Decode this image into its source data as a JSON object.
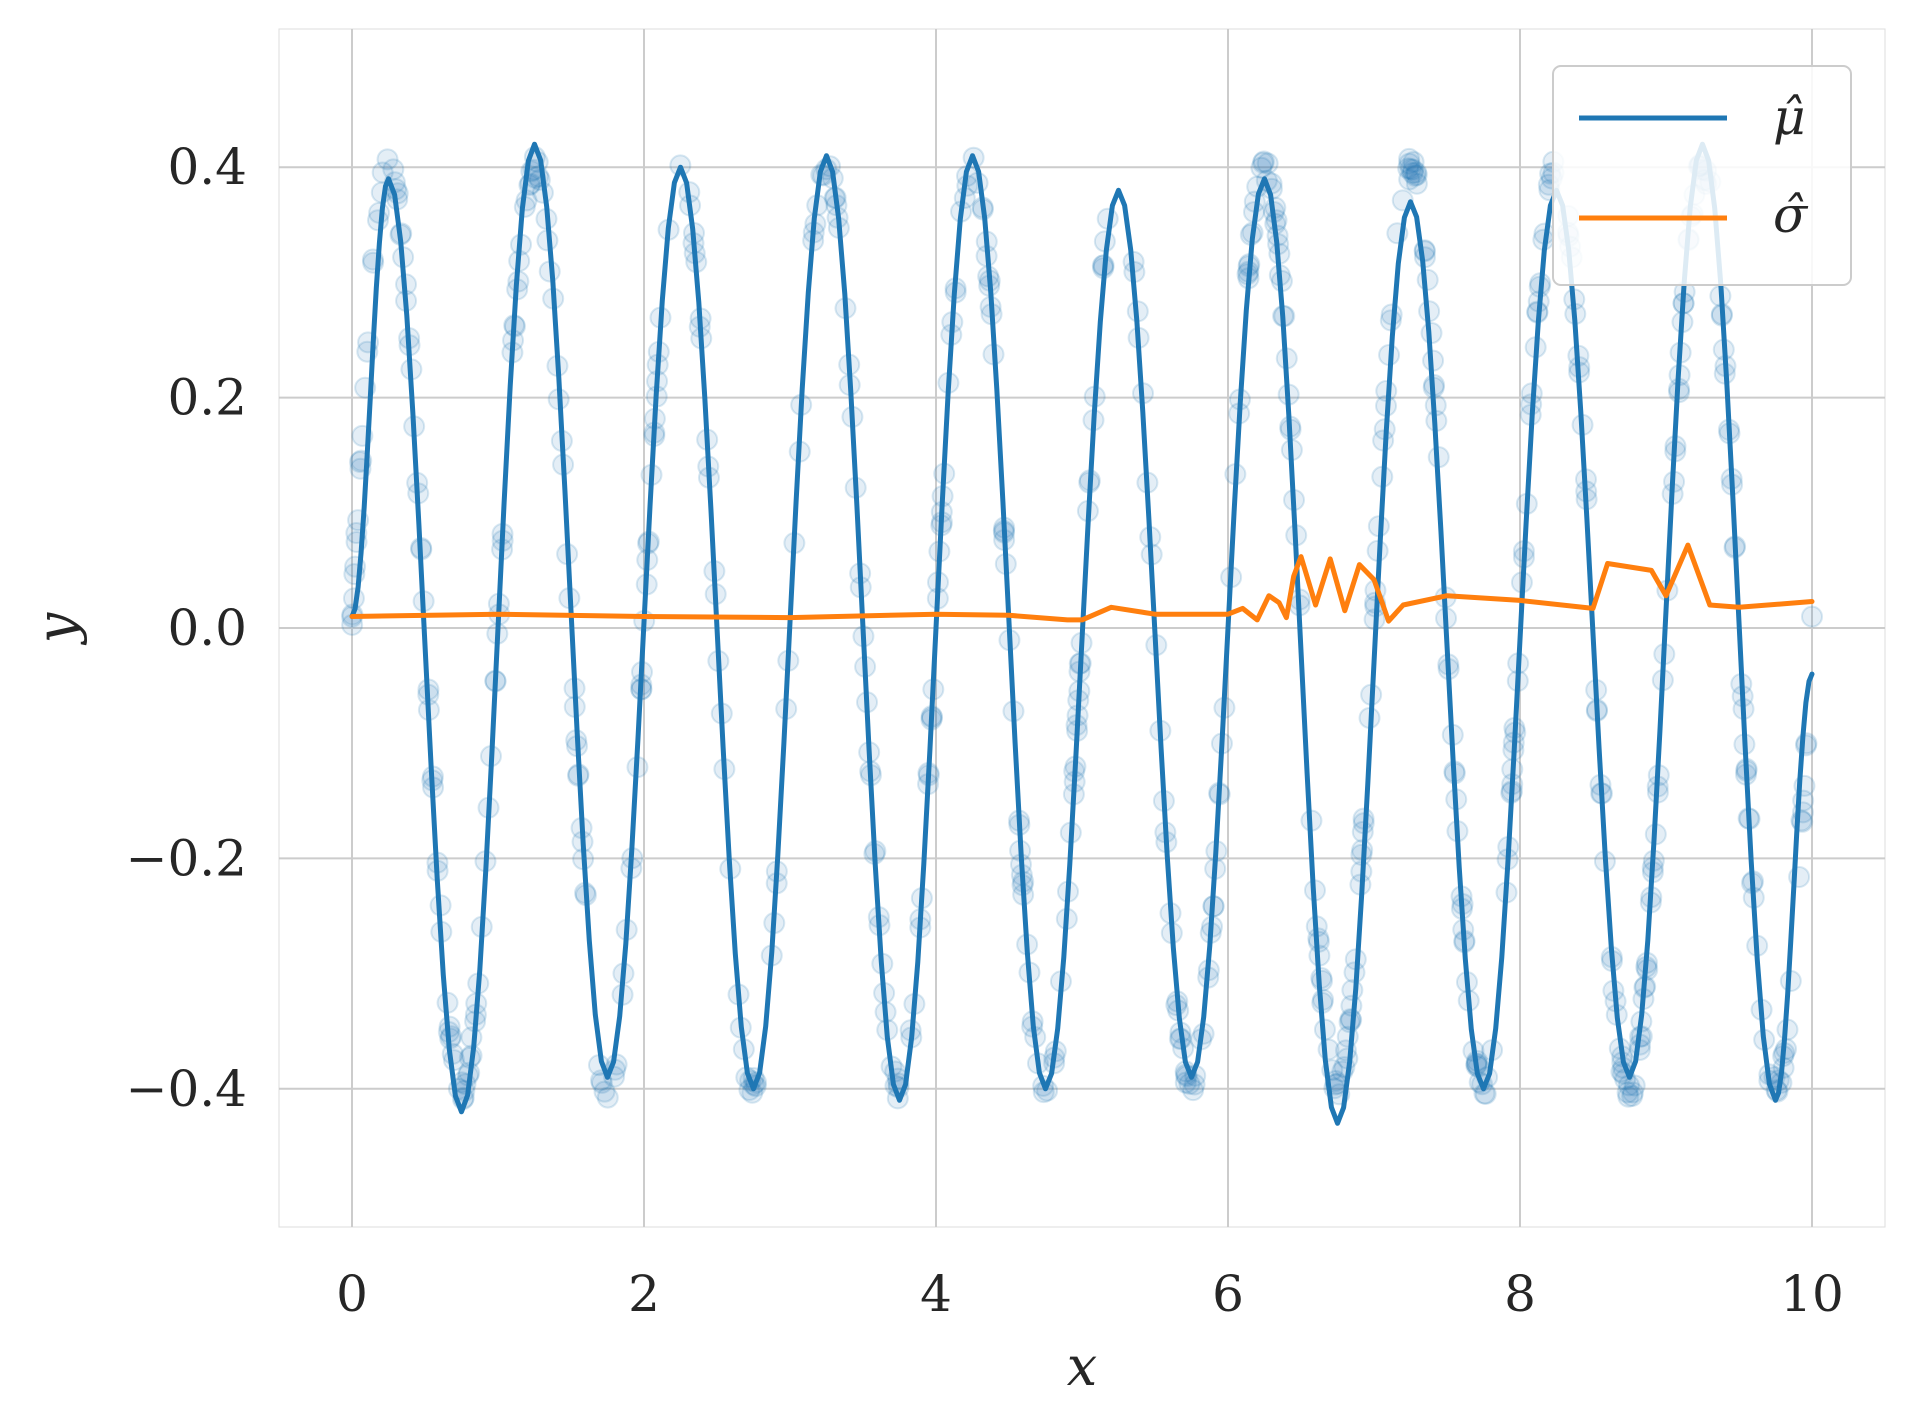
{
  "colors": {
    "mu": "#1f77b4",
    "sigma": "#ff7f0e",
    "grid": "#cccccc",
    "background": "#ffffff",
    "text": "#262626"
  },
  "chart_data": {
    "type": "line",
    "xlabel": "x",
    "ylabel": "y",
    "xlim": [
      -0.5,
      10.5
    ],
    "ylim": [
      -0.52,
      0.52
    ],
    "xticks": [
      0,
      2,
      4,
      6,
      8,
      10
    ],
    "yticks": [
      -0.4,
      -0.2,
      0.0,
      0.2,
      0.4
    ],
    "xtick_labels": [
      "0",
      "2",
      "4",
      "6",
      "8",
      "10"
    ],
    "ytick_labels": [
      "−0.4",
      "−0.2",
      "0.0",
      "0.2",
      "0.4"
    ],
    "grid": true,
    "legend_position": "top-right",
    "legend": [
      "μ̂",
      "σ̂"
    ],
    "scatter_observations": {
      "function": "0.4 * sin(2 * pi * x)",
      "x_range": [
        0,
        10
      ],
      "noise": 0.01,
      "color": "mu",
      "alpha": 0.12
    },
    "series": [
      {
        "name": "μ̂",
        "color": "mu",
        "x": [
          0.0,
          0.25,
          0.75,
          1.25,
          1.75,
          2.25,
          2.75,
          3.25,
          3.75,
          4.25,
          4.75,
          5.25,
          5.75,
          6.25,
          6.75,
          7.25,
          7.75,
          8.25,
          8.75,
          9.25,
          9.75,
          10.0
        ],
        "y": [
          0.01,
          0.39,
          -0.42,
          0.42,
          -0.39,
          0.4,
          -0.4,
          0.41,
          -0.41,
          0.41,
          -0.4,
          0.38,
          -0.39,
          0.39,
          -0.43,
          0.37,
          -0.4,
          0.38,
          -0.39,
          0.42,
          -0.41,
          -0.04
        ]
      },
      {
        "name": "σ̂",
        "color": "sigma",
        "x": [
          0.0,
          1.0,
          2.0,
          3.0,
          4.0,
          4.5,
          4.9,
          5.0,
          5.2,
          5.5,
          6.0,
          6.1,
          6.2,
          6.28,
          6.35,
          6.4,
          6.45,
          6.5,
          6.6,
          6.7,
          6.8,
          6.9,
          7.0,
          7.1,
          7.2,
          7.5,
          8.0,
          8.5,
          8.6,
          8.9,
          9.0,
          9.15,
          9.3,
          9.5,
          10.0
        ],
        "y": [
          0.01,
          0.012,
          0.01,
          0.009,
          0.012,
          0.011,
          0.007,
          0.007,
          0.018,
          0.012,
          0.012,
          0.017,
          0.007,
          0.028,
          0.022,
          0.009,
          0.045,
          0.062,
          0.02,
          0.06,
          0.015,
          0.055,
          0.042,
          0.006,
          0.02,
          0.028,
          0.024,
          0.017,
          0.056,
          0.05,
          0.028,
          0.072,
          0.02,
          0.018,
          0.023
        ]
      }
    ]
  }
}
